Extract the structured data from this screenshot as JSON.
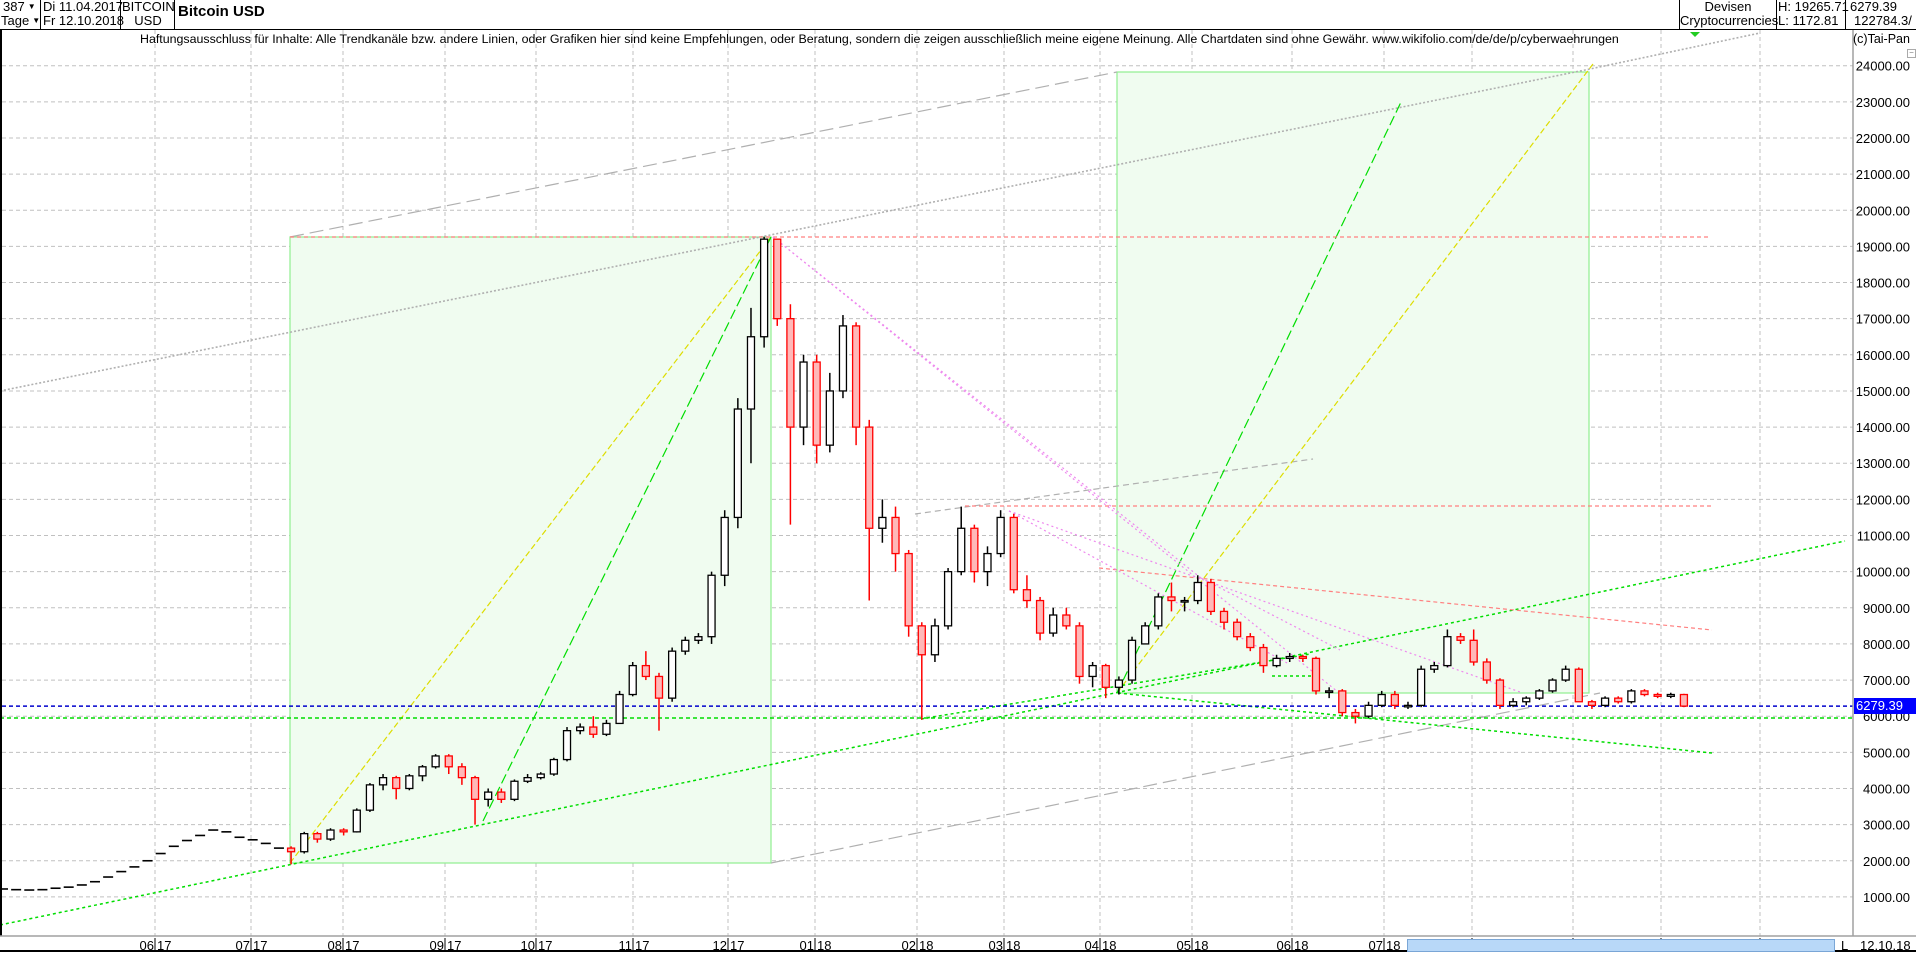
{
  "header": {
    "bar_count": "387",
    "period": "Tage",
    "date_from": "Di 11.04.2017",
    "date_to": "Fr 12.10.2018",
    "symbol_line1": "BITCOIN",
    "symbol_line2": "USD",
    "title": "Bitcoin USD",
    "category_line1": "Devisen",
    "category_line2": "Cryptocurrencies",
    "high": "H: 19265.71",
    "low": "L: 1172.81",
    "last": "6279.39",
    "volume": "122784.3/"
  },
  "disclaimer": "Haftungsausschluss für Inhalte: Alle Trendkanäle bzw. andere Linien, oder Grafiken hier sind keine Empfehlungen, oder Beratung, sondern die zeigen ausschließlich meine eigene Meinung. Alle Chartdaten sind ohne Gewähr.  www.wikifolio.com/de/de/p/cyberwaehrungen",
  "copyright": "(c)Tai-Pan",
  "minimize_glyph": "−",
  "footer": {
    "scroll_marker": "L",
    "end_date": "12.10.18"
  },
  "colors": {
    "up_body": "#ffffff",
    "up_border": "#000000",
    "down_body": "#ffb8b8",
    "down_border": "#ff0000",
    "price_line": "#0000cc",
    "price_label_bg": "#0000ff",
    "box_fill": "#f0fcf0",
    "box_border": "#90ee90",
    "grid": "#c0c0c0",
    "support": "#00dd00",
    "fan_yellow": "#dddd00",
    "resistance": "#ff8080",
    "pink_lines": "#ee88ee",
    "gray_lines": "#b0b0b0",
    "scrollbar": "#b8d8f8"
  },
  "chart_data": {
    "type": "candlestick",
    "title": "Bitcoin USD",
    "date_range": [
      "11.04.2017",
      "12.10.2018"
    ],
    "grid": true,
    "y_axis_side": "right",
    "ylim": [
      1000,
      24000
    ],
    "y_ticks": [
      1000,
      2000,
      3000,
      4000,
      5000,
      6000,
      7000,
      8000,
      9000,
      10000,
      11000,
      12000,
      13000,
      14000,
      15000,
      16000,
      17000,
      18000,
      19000,
      20000,
      21000,
      22000,
      23000,
      24000
    ],
    "x_ticks": [
      {
        "m": "06",
        "y": "17"
      },
      {
        "m": "07",
        "y": "17"
      },
      {
        "m": "08",
        "y": "17"
      },
      {
        "m": "09",
        "y": "17"
      },
      {
        "m": "10",
        "y": "17"
      },
      {
        "m": "11",
        "y": "17"
      },
      {
        "m": "12",
        "y": "17"
      },
      {
        "m": "01",
        "y": "18"
      },
      {
        "m": "02",
        "y": "18"
      },
      {
        "m": "03",
        "y": "18"
      },
      {
        "m": "04",
        "y": "18"
      },
      {
        "m": "05",
        "y": "18"
      },
      {
        "m": "06",
        "y": "18"
      },
      {
        "m": "07",
        "y": "18"
      },
      {
        "m": "08",
        "y": "18"
      },
      {
        "m": "09",
        "y": "18"
      },
      {
        "m": "10",
        "y": "18"
      },
      {
        "m": "11",
        "y": "18"
      }
    ],
    "last_price": 6279.39,
    "price_label": "6279.39",
    "high": 19265.71,
    "low": 1172.81,
    "early_closes": [
      1219,
      1200,
      1190,
      1200,
      1240,
      1270,
      1330,
      1420,
      1550,
      1700,
      1830,
      2000,
      2200,
      2400,
      2560,
      2700,
      2850,
      2800,
      2650,
      2580,
      2480,
      2350
    ],
    "candles": [
      [
        2350,
        2400,
        1900,
        2250
      ],
      [
        2250,
        2800,
        2200,
        2750
      ],
      [
        2750,
        2800,
        2500,
        2600
      ],
      [
        2600,
        2900,
        2550,
        2850
      ],
      [
        2850,
        2900,
        2700,
        2800
      ],
      [
        2800,
        3450,
        2780,
        3400
      ],
      [
        3400,
        4150,
        3350,
        4100
      ],
      [
        4100,
        4400,
        3950,
        4300
      ],
      [
        4300,
        4350,
        3700,
        4000
      ],
      [
        4000,
        4400,
        3950,
        4350
      ],
      [
        4350,
        4650,
        4200,
        4600
      ],
      [
        4600,
        4950,
        4550,
        4900
      ],
      [
        4900,
        4950,
        4400,
        4600
      ],
      [
        4600,
        4700,
        4100,
        4300
      ],
      [
        4300,
        4350,
        3000,
        3700
      ],
      [
        3700,
        4000,
        3500,
        3900
      ],
      [
        3900,
        4000,
        3600,
        3700
      ],
      [
        3700,
        4250,
        3650,
        4200
      ],
      [
        4200,
        4400,
        4150,
        4300
      ],
      [
        4300,
        4450,
        4250,
        4400
      ],
      [
        4400,
        4850,
        4350,
        4800
      ],
      [
        4800,
        5700,
        4750,
        5600
      ],
      [
        5600,
        5800,
        5500,
        5700
      ],
      [
        5700,
        6000,
        5400,
        5500
      ],
      [
        5500,
        5900,
        5450,
        5800
      ],
      [
        5800,
        6700,
        5800,
        6600
      ],
      [
        6600,
        7500,
        6550,
        7400
      ],
      [
        7400,
        7800,
        7000,
        7100
      ],
      [
        7100,
        7200,
        5600,
        6500
      ],
      [
        6500,
        7900,
        6400,
        7800
      ],
      [
        7800,
        8200,
        7700,
        8100
      ],
      [
        8100,
        8300,
        8000,
        8200
      ],
      [
        8200,
        10000,
        8000,
        9900
      ],
      [
        9900,
        11700,
        9600,
        11500
      ],
      [
        11500,
        14800,
        11200,
        14500
      ],
      [
        14500,
        17300,
        13000,
        16500
      ],
      [
        16500,
        19265.71,
        16200,
        19200
      ],
      [
        19200,
        19200,
        16800,
        17000
      ],
      [
        17000,
        17400,
        11300,
        14000
      ],
      [
        14000,
        16000,
        13500,
        15800
      ],
      [
        15800,
        16000,
        13000,
        13500
      ],
      [
        13500,
        15500,
        13300,
        15000
      ],
      [
        15000,
        17100,
        14800,
        16800
      ],
      [
        16800,
        16900,
        13500,
        14000
      ],
      [
        14000,
        14200,
        9200,
        11200
      ],
      [
        11200,
        12000,
        10800,
        11500
      ],
      [
        11500,
        11800,
        10000,
        10500
      ],
      [
        10500,
        10600,
        8200,
        8500
      ],
      [
        8500,
        8600,
        5900,
        7700
      ],
      [
        7700,
        8700,
        7500,
        8500
      ],
      [
        8500,
        10100,
        8400,
        10000
      ],
      [
        10000,
        11800,
        9900,
        11200
      ],
      [
        11200,
        11300,
        9700,
        10000
      ],
      [
        10000,
        10700,
        9600,
        10500
      ],
      [
        10500,
        11700,
        10400,
        11500
      ],
      [
        11500,
        11600,
        9400,
        9500
      ],
      [
        9500,
        9900,
        9000,
        9200
      ],
      [
        9200,
        9300,
        8100,
        8300
      ],
      [
        8300,
        9000,
        8200,
        8800
      ],
      [
        8800,
        9000,
        8400,
        8500
      ],
      [
        8500,
        8600,
        6900,
        7100
      ],
      [
        7100,
        7500,
        6800,
        7400
      ],
      [
        7400,
        7450,
        6500,
        6800
      ],
      [
        6800,
        7100,
        6600,
        7000
      ],
      [
        7000,
        8200,
        6900,
        8100
      ],
      [
        8000,
        8600,
        8000,
        8500
      ],
      [
        8500,
        9400,
        8400,
        9300
      ],
      [
        9300,
        9700,
        8900,
        9200
      ],
      [
        9200,
        9300,
        8900,
        9200
      ],
      [
        9200,
        9900,
        9100,
        9700
      ],
      [
        9700,
        9800,
        8800,
        8900
      ],
      [
        8900,
        9000,
        8400,
        8600
      ],
      [
        8600,
        8700,
        8100,
        8200
      ],
      [
        8200,
        8300,
        7800,
        7900
      ],
      [
        7900,
        8000,
        7200,
        7400
      ],
      [
        7400,
        7700,
        7350,
        7600
      ],
      [
        7600,
        7750,
        7500,
        7650
      ],
      [
        7650,
        7700,
        7500,
        7600
      ],
      [
        7600,
        7650,
        6600,
        6700
      ],
      [
        6700,
        6800,
        6500,
        6700
      ],
      [
        6700,
        6750,
        6000,
        6100
      ],
      [
        6100,
        6200,
        5800,
        6000
      ],
      [
        6000,
        6400,
        5950,
        6300
      ],
      [
        6300,
        6700,
        6250,
        6600
      ],
      [
        6600,
        6700,
        6200,
        6300
      ],
      [
        6300,
        6400,
        6200,
        6300
      ],
      [
        6300,
        7400,
        6250,
        7300
      ],
      [
        7300,
        7500,
        7200,
        7400
      ],
      [
        7400,
        8400,
        7350,
        8200
      ],
      [
        8200,
        8300,
        8000,
        8100
      ],
      [
        8100,
        8400,
        7400,
        7500
      ],
      [
        7500,
        7600,
        6900,
        7000
      ],
      [
        7000,
        7050,
        6200,
        6300
      ],
      [
        6300,
        6500,
        6250,
        6400
      ],
      [
        6400,
        6550,
        6300,
        6500
      ],
      [
        6500,
        6750,
        6450,
        6700
      ],
      [
        6700,
        7050,
        6650,
        7000
      ],
      [
        7000,
        7400,
        6950,
        7300
      ],
      [
        7300,
        7350,
        6400,
        6400
      ],
      [
        6400,
        6450,
        6200,
        6300
      ],
      [
        6300,
        6550,
        6250,
        6500
      ],
      [
        6500,
        6550,
        6350,
        6400
      ],
      [
        6400,
        6750,
        6350,
        6700
      ],
      [
        6700,
        6750,
        6550,
        6600
      ],
      [
        6600,
        6650,
        6500,
        6550
      ],
      [
        6550,
        6650,
        6500,
        6600
      ],
      [
        6600,
        6620,
        6250,
        6279.39
      ]
    ]
  }
}
